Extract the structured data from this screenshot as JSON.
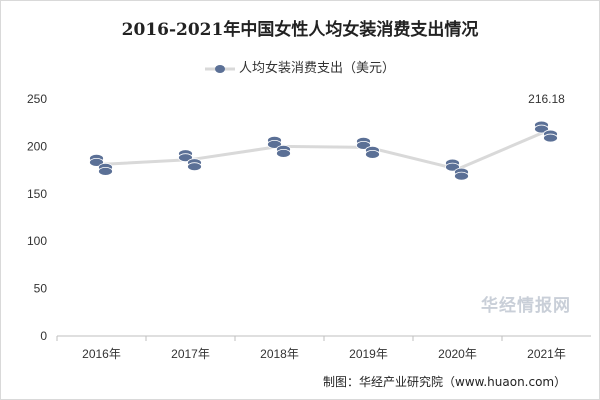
{
  "chart_data": {
    "type": "line",
    "title": "2016-2021年中国女性人均女装消费支出情况",
    "categories": [
      "2016年",
      "2017年",
      "2018年",
      "2019年",
      "2020年",
      "2021年"
    ],
    "series": [
      {
        "name": "人均女装消费支出（美元）",
        "values": [
          181,
          186,
          200,
          199,
          176,
          216.18
        ],
        "color": "#d9d9d9",
        "marker": "coin-stack-icon",
        "marker_color": "#5b7096"
      }
    ],
    "data_labels": [
      {
        "index": 5,
        "text": "216.18"
      }
    ],
    "ylim": [
      0,
      250
    ],
    "yticks": [
      0,
      50,
      100,
      150,
      200,
      250
    ],
    "grid": false,
    "legend_position": "top"
  },
  "footer": {
    "source": "制图：华经产业研究院（www.huaon.com）",
    "watermark": "华经情报网"
  }
}
